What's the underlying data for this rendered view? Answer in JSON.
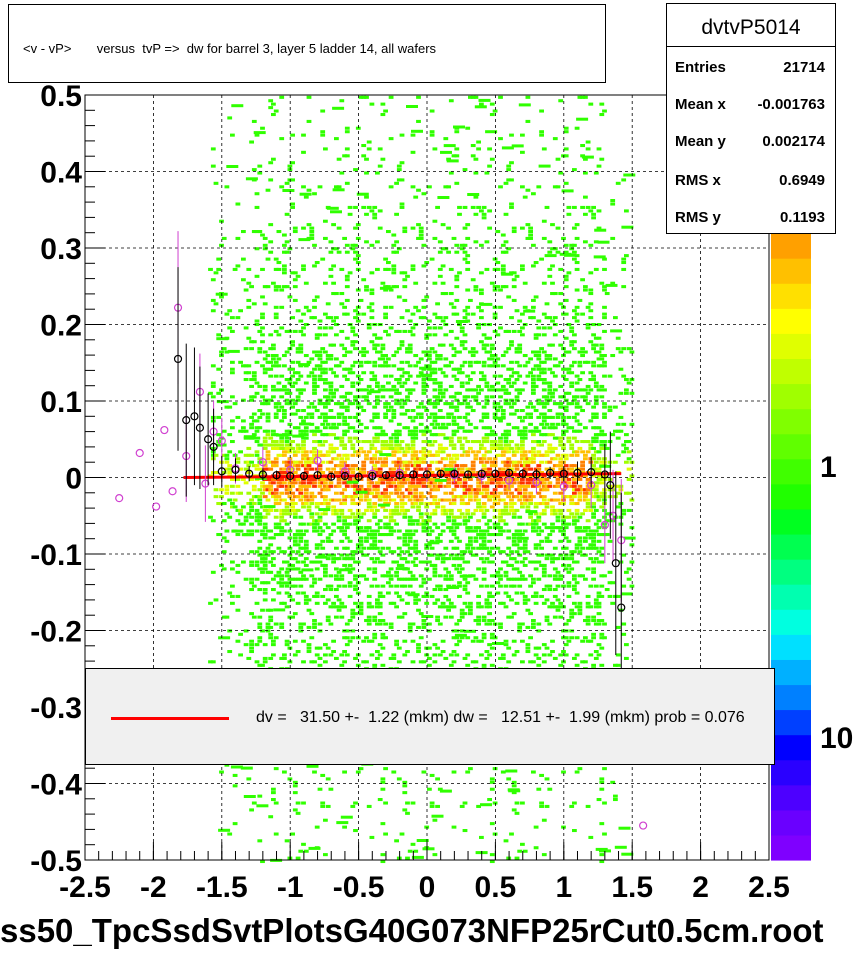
{
  "histogram_name": "dvtvP5014",
  "footer_text": "ss50_TpcSsdSvtPlotsG40G073NFP25rCut0.5cm.root",
  "stats": [
    {
      "label": "Entries",
      "value": "21714"
    },
    {
      "label": "Mean x",
      "value": "-0.001763"
    },
    {
      "label": "Mean y",
      "value": "0.002174"
    },
    {
      "label": "RMS x",
      "value": "0.6949"
    },
    {
      "label": "RMS y",
      "value": "0.1193"
    }
  ],
  "fit_legend": {
    "text": "dv =   31.50 +-  1.22 (mkm) dw =   12.51 +-  1.99 (mkm) prob = 0.076",
    "line_color": "#ff0000"
  },
  "colors": {
    "fit_line": "#ff0000",
    "profile_open_black": "#000000",
    "profile_open_magenta": "#d040d0"
  },
  "palette": [
    "#7f00ff",
    "#6a00ff",
    "#4d00ff",
    "#2a00ff",
    "#0000ff",
    "#0040ff",
    "#0080ff",
    "#00b0ff",
    "#00e0ff",
    "#00ffe0",
    "#00ffb0",
    "#00ff80",
    "#00ff50",
    "#00ff20",
    "#20ff00",
    "#40ff00",
    "#60ff00",
    "#80ff00",
    "#a0ff00",
    "#c0ff00",
    "#e0ff00",
    "#ffff00",
    "#ffe000",
    "#ffc000",
    "#ffa000"
  ],
  "chart_data": {
    "type": "heatmap",
    "title": "<v - vP>       versus  tvP =>  dw for barrel 3, layer 5 ladder 14, all wafers",
    "xlim": [
      -2.5,
      2.5
    ],
    "ylim": [
      -0.5,
      0.5
    ],
    "x_ticks": [
      "-2.5",
      "-2",
      "-1.5",
      "-1",
      "-0.5",
      "0",
      "0.5",
      "1",
      "1.5",
      "2",
      "2.5"
    ],
    "y_ticks": [
      "-0.5",
      "-0.4",
      "-0.3",
      "-0.2",
      "-0.1",
      "0",
      "0.1",
      "0.2",
      "0.3",
      "0.4",
      "0.5"
    ],
    "z_scale": "log",
    "z_ticks": [
      "1",
      "10"
    ],
    "grid": true,
    "fit": {
      "x": [
        -1.78,
        1.42
      ],
      "y": [
        0.0,
        0.005
      ]
    },
    "profile_black": {
      "x": [
        -1.82,
        -1.76,
        -1.7,
        -1.66,
        -1.6,
        -1.56,
        -1.5,
        -1.4,
        -1.3,
        -1.2,
        -1.1,
        -1.0,
        -0.9,
        -0.8,
        -0.7,
        -0.6,
        -0.5,
        -0.4,
        -0.3,
        -0.2,
        -0.1,
        0.0,
        0.1,
        0.2,
        0.3,
        0.4,
        0.5,
        0.6,
        0.7,
        0.8,
        0.9,
        1.0,
        1.1,
        1.2,
        1.3,
        1.34,
        1.38,
        1.42
      ],
      "y": [
        0.155,
        0.075,
        0.08,
        0.065,
        0.05,
        0.04,
        0.008,
        0.01,
        0.005,
        0.004,
        0.003,
        0.002,
        0.002,
        0.003,
        0.001,
        0.002,
        0.001,
        0.002,
        0.003,
        0.003,
        0.004,
        0.004,
        0.005,
        0.005,
        0.004,
        0.005,
        0.005,
        0.006,
        0.005,
        0.004,
        0.006,
        0.005,
        0.006,
        0.007,
        0.004,
        -0.01,
        -0.112,
        -0.17
      ],
      "err": [
        0.12,
        0.1,
        0.09,
        0.08,
        0.06,
        0.05,
        0.02,
        0.015,
        0.01,
        0.008,
        0.006,
        0.006,
        0.005,
        0.005,
        0.005,
        0.005,
        0.005,
        0.005,
        0.005,
        0.005,
        0.005,
        0.005,
        0.005,
        0.005,
        0.005,
        0.005,
        0.005,
        0.005,
        0.006,
        0.007,
        0.008,
        0.01,
        0.015,
        0.02,
        0.04,
        0.07,
        0.12,
        0.15
      ]
    },
    "profile_magenta": {
      "x": [
        -2.25,
        -2.1,
        -1.98,
        -1.92,
        -1.86,
        -1.82,
        -1.76,
        -1.66,
        -1.62,
        -1.56,
        -1.5,
        -1.4,
        -1.2,
        -1.0,
        -0.8,
        -0.6,
        -0.4,
        -0.2,
        0.0,
        0.2,
        0.4,
        0.6,
        0.8,
        1.0,
        1.2,
        1.3,
        1.36,
        1.42,
        1.58
      ],
      "y": [
        -0.027,
        0.032,
        -0.038,
        0.062,
        -0.018,
        0.222,
        0.028,
        0.112,
        -0.008,
        0.06,
        0.048,
        0.012,
        0.02,
        0.01,
        0.022,
        0.008,
        0.005,
        0.006,
        0.004,
        0.003,
        0.002,
        -0.004,
        -0.006,
        -0.012,
        -0.01,
        -0.062,
        -0.05,
        -0.082,
        -0.455
      ],
      "err": [
        0,
        0,
        0,
        0,
        0,
        0.1,
        0.06,
        0.05,
        0.05,
        0.04,
        0.03,
        0.02,
        0.02,
        0.015,
        0.015,
        0.012,
        0.01,
        0.01,
        0.01,
        0.01,
        0.01,
        0.012,
        0.015,
        0.02,
        0.03,
        0.05,
        0.06,
        0.08,
        0
      ]
    }
  }
}
